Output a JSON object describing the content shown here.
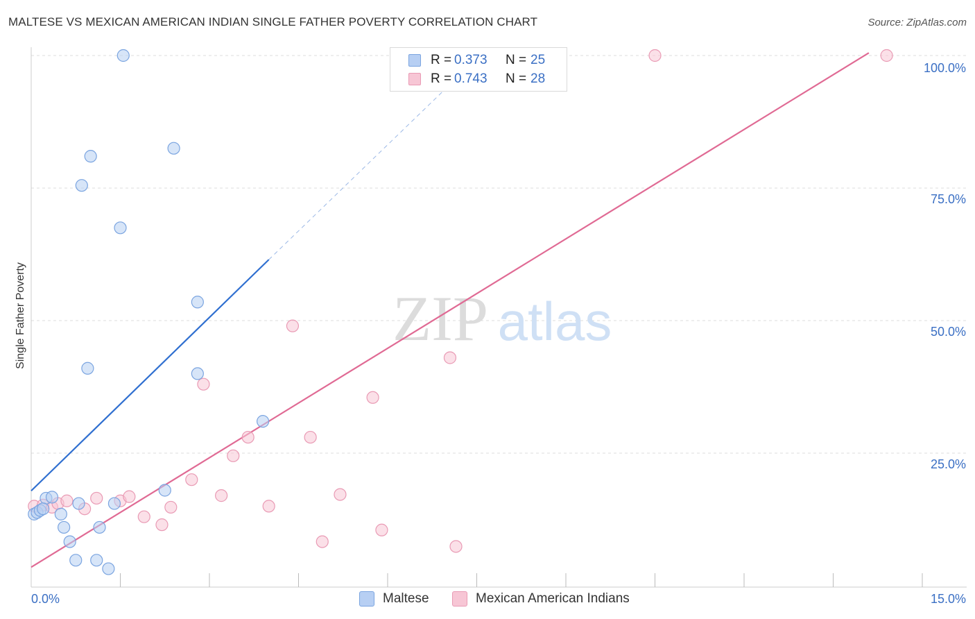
{
  "title": "MALTESE VS MEXICAN AMERICAN INDIAN SINGLE FATHER POVERTY CORRELATION CHART",
  "source": "Source: ZipAtlas.com",
  "watermark": {
    "zip": "ZIP",
    "atlas": "atlas"
  },
  "legend_top": [
    {
      "r_label": "R =",
      "r_value": "0.373",
      "n_label": "N =",
      "n_value": "25"
    },
    {
      "r_label": "R =",
      "r_value": "0.743",
      "n_label": "N =",
      "n_value": "28"
    }
  ],
  "legend_bottom": [
    "Maltese",
    "Mexican American Indians"
  ],
  "colors": {
    "maltese_fill": "#b7cff3",
    "maltese_stroke": "#7aa4e0",
    "maltese_line": "#2f6fd0",
    "mexican_fill": "#f7c6d5",
    "mexican_stroke": "#e99ab4",
    "mexican_line": "#e06a94",
    "axis_text": "#3a6fc4",
    "grid": "#dddddd"
  },
  "chart_data": {
    "type": "scatter",
    "title": "MALTESE VS MEXICAN AMERICAN INDIAN SINGLE FATHER POVERTY CORRELATION CHART",
    "xlabel": "",
    "ylabel": "Single Father Poverty",
    "xlim": [
      0,
      15
    ],
    "ylim": [
      0,
      100
    ],
    "x_tick_labels": [
      "0.0%",
      "15.0%"
    ],
    "y_ticks": [
      25,
      50,
      75,
      100
    ],
    "y_tick_labels": [
      "25.0%",
      "50.0%",
      "75.0%",
      "100.0%"
    ],
    "grid": true,
    "series": [
      {
        "name": "Maltese",
        "r": 0.373,
        "n": 25,
        "points": [
          [
            0.05,
            13.5
          ],
          [
            0.1,
            13.8
          ],
          [
            0.15,
            14.2
          ],
          [
            0.25,
            16.5
          ],
          [
            0.35,
            16.7
          ],
          [
            0.5,
            13.5
          ],
          [
            0.55,
            11.0
          ],
          [
            0.65,
            8.3
          ],
          [
            0.75,
            4.8
          ],
          [
            0.8,
            15.5
          ],
          [
            0.85,
            75.5
          ],
          [
            0.95,
            41.0
          ],
          [
            1.0,
            81.0
          ],
          [
            1.15,
            11.0
          ],
          [
            1.1,
            4.8
          ],
          [
            1.3,
            3.2
          ],
          [
            1.4,
            15.5
          ],
          [
            1.5,
            67.5
          ],
          [
            1.55,
            100.0
          ],
          [
            2.25,
            18.0
          ],
          [
            2.4,
            82.5
          ],
          [
            2.8,
            53.5
          ],
          [
            2.8,
            40.0
          ],
          [
            3.9,
            31.0
          ],
          [
            0.2,
            14.5
          ]
        ],
        "trend_solid": [
          [
            0.0,
            17.9
          ],
          [
            4.0,
            61.5
          ]
        ],
        "trend_dashed": [
          [
            4.0,
            61.5
          ],
          [
            7.6,
            100.5
          ]
        ]
      },
      {
        "name": "Mexican American Indians",
        "r": 0.743,
        "n": 28,
        "points": [
          [
            0.05,
            15.0
          ],
          [
            0.2,
            15.2
          ],
          [
            0.35,
            14.8
          ],
          [
            0.45,
            15.5
          ],
          [
            0.6,
            16.0
          ],
          [
            0.9,
            14.5
          ],
          [
            1.1,
            16.5
          ],
          [
            1.5,
            16.0
          ],
          [
            1.65,
            16.8
          ],
          [
            1.9,
            13.0
          ],
          [
            2.2,
            11.5
          ],
          [
            2.35,
            14.8
          ],
          [
            2.7,
            20.0
          ],
          [
            2.9,
            38.0
          ],
          [
            3.2,
            17.0
          ],
          [
            3.4,
            24.5
          ],
          [
            3.65,
            28.0
          ],
          [
            4.0,
            15.0
          ],
          [
            4.4,
            49.0
          ],
          [
            4.7,
            28.0
          ],
          [
            4.9,
            8.3
          ],
          [
            5.2,
            17.2
          ],
          [
            5.75,
            35.5
          ],
          [
            5.9,
            10.5
          ],
          [
            7.05,
            43.0
          ],
          [
            7.15,
            7.4
          ],
          [
            10.5,
            100.0
          ],
          [
            14.4,
            100.0
          ]
        ],
        "trend_solid": [
          [
            0.0,
            3.5
          ],
          [
            14.1,
            100.5
          ]
        ]
      }
    ]
  }
}
